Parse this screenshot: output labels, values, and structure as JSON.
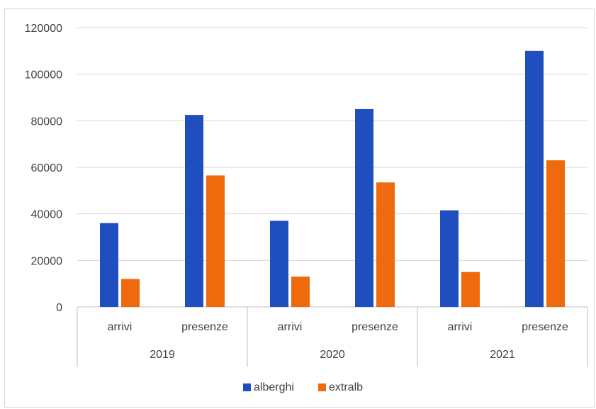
{
  "chart_data": {
    "type": "bar",
    "groups": [
      {
        "label": "2019",
        "categories": [
          "arrivi",
          "presenze"
        ]
      },
      {
        "label": "2020",
        "categories": [
          "arrivi",
          "presenze"
        ]
      },
      {
        "label": "2021",
        "categories": [
          "arrivi",
          "presenze"
        ]
      }
    ],
    "series": [
      {
        "name": "alberghi",
        "color": "#1f4fbf",
        "values": [
          36000,
          82500,
          37000,
          85000,
          41500,
          110000
        ]
      },
      {
        "name": "extralb",
        "color": "#ee6a0c",
        "values": [
          12000,
          56500,
          13000,
          53500,
          15000,
          63000
        ]
      }
    ],
    "ylim": [
      0,
      120000
    ],
    "yticks": [
      "0",
      "20000",
      "40000",
      "60000",
      "80000",
      "100000",
      "120000"
    ],
    "grid": true,
    "legend": "bottom"
  }
}
